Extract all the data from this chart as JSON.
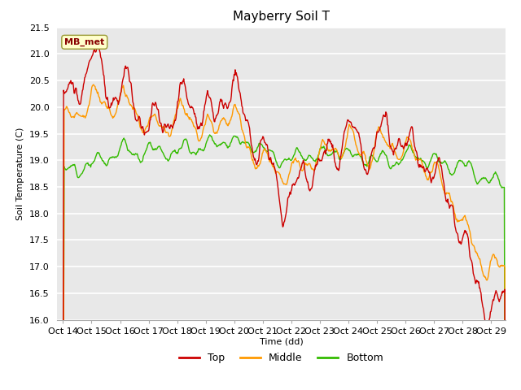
{
  "title": "Mayberry Soil T",
  "xlabel": "Time (dd)",
  "ylabel": "Soil Temperature (C)",
  "ylim": [
    16.0,
    21.5
  ],
  "xlim": [
    13.8,
    29.5
  ],
  "xticks": [
    14,
    15,
    16,
    17,
    18,
    19,
    20,
    21,
    22,
    23,
    24,
    25,
    26,
    27,
    28,
    29
  ],
  "xtick_labels": [
    "Oct 14",
    "Oct 15",
    "Oct 16",
    "Oct 17",
    "Oct 18",
    "Oct 19",
    "Oct 20",
    "Oct 21",
    "Oct 22",
    "Oct 23",
    "Oct 24",
    "Oct 25",
    "Oct 26",
    "Oct 27",
    "Oct 28",
    "Oct 29"
  ],
  "yticks": [
    16.0,
    16.5,
    17.0,
    17.5,
    18.0,
    18.5,
    19.0,
    19.5,
    20.0,
    20.5,
    21.0,
    21.5
  ],
  "line_colors": [
    "#cc0000",
    "#ff9900",
    "#33bb00"
  ],
  "line_labels": [
    "Top",
    "Middle",
    "Bottom"
  ],
  "line_width": 1.0,
  "bg_color": "#e8e8e8",
  "grid_color": "#ffffff",
  "legend_box_facecolor": "#ffffcc",
  "legend_box_edge": "#999933",
  "legend_text_color": "#880000",
  "title_fontsize": 11,
  "label_fontsize": 8,
  "tick_fontsize": 8
}
